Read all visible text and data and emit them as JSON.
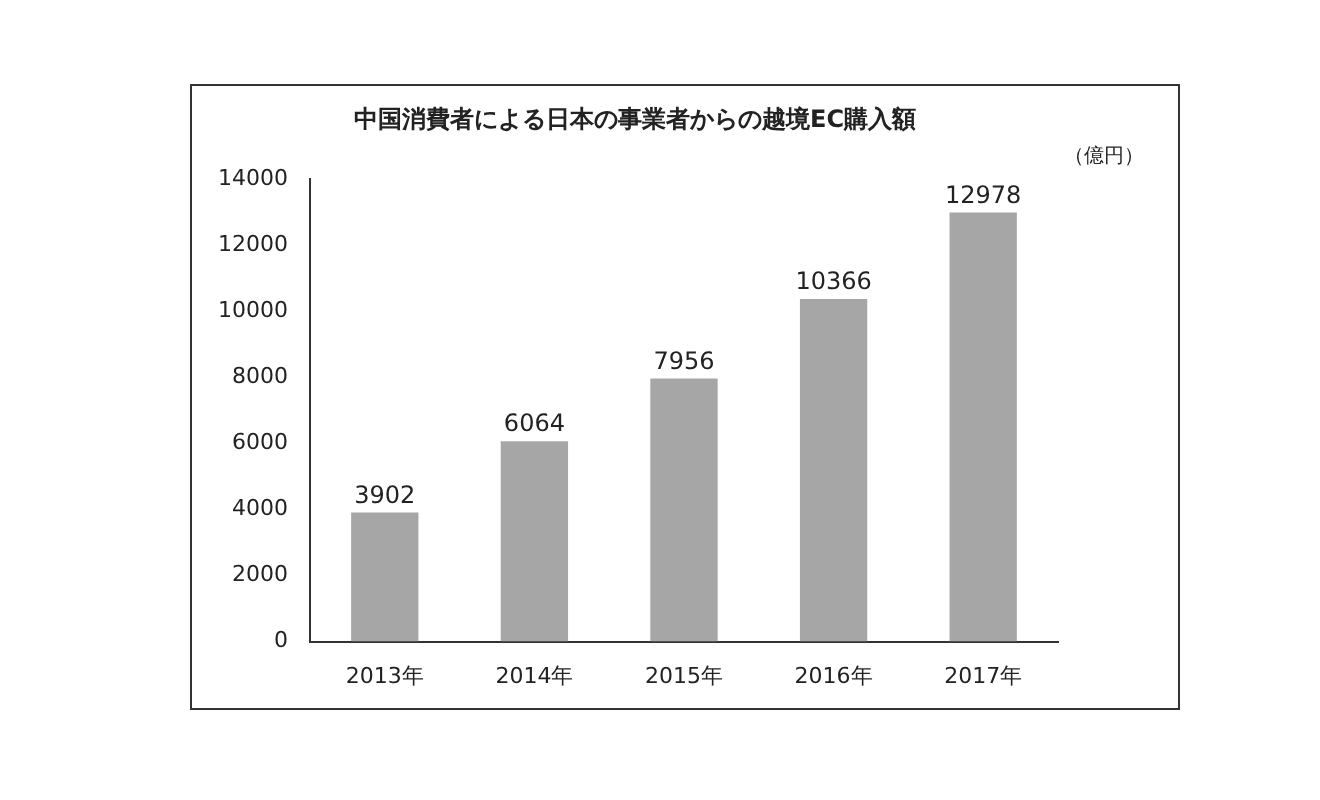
{
  "chart_data": {
    "type": "bar",
    "title": "中国消費者による日本の事業者からの越境EC購入額",
    "ylabel": "（億円）",
    "categories": [
      "2013年",
      "2014年",
      "2015年",
      "2016年",
      "2017年"
    ],
    "values": [
      3902,
      6064,
      7956,
      10366,
      12978
    ],
    "color": "#a6a6a6",
    "ylim": [
      0,
      14000
    ],
    "yticks": [
      0,
      2000,
      4000,
      6000,
      8000,
      10000,
      12000,
      14000
    ],
    "grid": false,
    "data_labels": true,
    "legend": false
  }
}
